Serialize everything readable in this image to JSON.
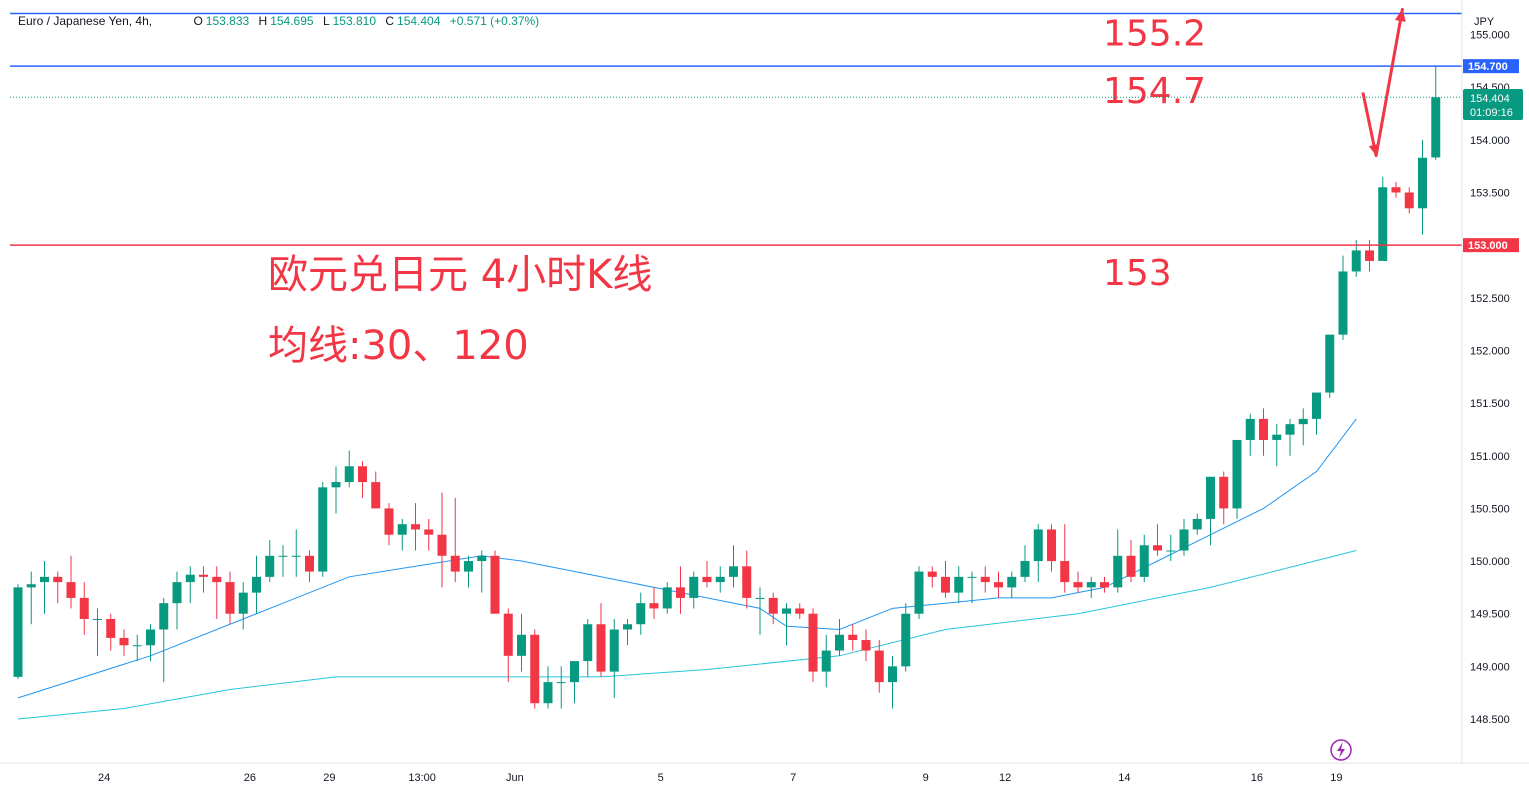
{
  "header": {
    "symbol": "Euro / Japanese Yen, 4h,",
    "ohlc": [
      {
        "k": "O",
        "v": "153.833"
      },
      {
        "k": "H",
        "v": "154.695"
      },
      {
        "k": "L",
        "v": "153.810"
      },
      {
        "k": "C",
        "v": "154.404"
      }
    ],
    "change": "+0.571 (+0.37%)"
  },
  "currency": "JPY",
  "price_label": {
    "value": "154.404",
    "countdown": "01:09:16"
  },
  "colors": {
    "up": "#089981",
    "down": "#f23645",
    "ma30": "#2196f3",
    "ma120": "#26c6da",
    "level_blue": "#2962ff",
    "level_red": "#f23645",
    "annot": "#f23645"
  },
  "chart_data": {
    "type": "candlestick",
    "title": "欧元兑日元 4小时K线",
    "subtitle": "均线:30、120",
    "y_ticks": [
      148.5,
      149.0,
      149.5,
      150.0,
      150.5,
      151.0,
      151.5,
      152.0,
      152.5,
      153.0,
      153.5,
      154.0,
      154.5,
      155.0
    ],
    "ylim": [
      148.25,
      155.25
    ],
    "x_labels": [
      {
        "label": "24",
        "bar": 6.5
      },
      {
        "label": "26",
        "bar": 17.5
      },
      {
        "label": "29",
        "bar": 23.5
      },
      {
        "label": "13:00",
        "bar": 30.5
      },
      {
        "label": "Jun",
        "bar": 37.5
      },
      {
        "label": "5",
        "bar": 48.5
      },
      {
        "label": "7",
        "bar": 58.5
      },
      {
        "label": "9",
        "bar": 68.5
      },
      {
        "label": "12",
        "bar": 74.5
      },
      {
        "label": "14",
        "bar": 83.5
      },
      {
        "label": "16",
        "bar": 93.5
      },
      {
        "label": "19",
        "bar": 99.5
      }
    ],
    "bars_shown": 101,
    "candles": [
      [
        148.9,
        149.78,
        148.88,
        149.75
      ],
      [
        149.75,
        149.9,
        149.4,
        149.78
      ],
      [
        149.8,
        150.0,
        149.5,
        149.85
      ],
      [
        149.85,
        149.9,
        149.6,
        149.8
      ],
      [
        149.8,
        150.05,
        149.55,
        149.65
      ],
      [
        149.65,
        149.8,
        149.3,
        149.45
      ],
      [
        149.45,
        149.55,
        149.1,
        149.45
      ],
      [
        149.45,
        149.5,
        149.15,
        149.27
      ],
      [
        149.27,
        149.35,
        149.1,
        149.2
      ],
      [
        149.2,
        149.3,
        149.05,
        149.2
      ],
      [
        149.2,
        149.4,
        149.05,
        149.35
      ],
      [
        149.35,
        149.65,
        148.85,
        149.6
      ],
      [
        149.6,
        149.9,
        149.35,
        149.8
      ],
      [
        149.8,
        149.95,
        149.6,
        149.87
      ],
      [
        149.87,
        149.95,
        149.7,
        149.85
      ],
      [
        149.85,
        149.95,
        149.45,
        149.8
      ],
      [
        149.8,
        149.9,
        149.4,
        149.5
      ],
      [
        149.5,
        149.8,
        149.35,
        149.7
      ],
      [
        149.7,
        150.05,
        149.5,
        149.85
      ],
      [
        149.85,
        150.2,
        149.8,
        150.05
      ],
      [
        150.05,
        150.15,
        149.85,
        150.05
      ],
      [
        150.05,
        150.3,
        149.85,
        150.05
      ],
      [
        150.05,
        150.1,
        149.8,
        149.9
      ],
      [
        149.9,
        150.75,
        149.85,
        150.7
      ],
      [
        150.7,
        150.9,
        150.45,
        150.75
      ],
      [
        150.75,
        151.05,
        150.7,
        150.9
      ],
      [
        150.9,
        150.95,
        150.6,
        150.75
      ],
      [
        150.75,
        150.85,
        150.5,
        150.5
      ],
      [
        150.5,
        150.55,
        150.15,
        150.25
      ],
      [
        150.25,
        150.4,
        150.1,
        150.35
      ],
      [
        150.35,
        150.55,
        150.1,
        150.3
      ],
      [
        150.3,
        150.4,
        150.1,
        150.25
      ],
      [
        150.25,
        150.65,
        149.75,
        150.05
      ],
      [
        150.05,
        150.6,
        149.8,
        149.9
      ],
      [
        149.9,
        150.05,
        149.75,
        150.0
      ],
      [
        150.0,
        150.1,
        149.7,
        150.05
      ],
      [
        150.05,
        150.1,
        149.5,
        149.5
      ],
      [
        149.5,
        149.55,
        148.85,
        149.1
      ],
      [
        149.1,
        149.5,
        148.95,
        149.3
      ],
      [
        149.3,
        149.35,
        148.6,
        148.65
      ],
      [
        148.65,
        149.0,
        148.6,
        148.85
      ],
      [
        148.85,
        149.0,
        148.6,
        148.85
      ],
      [
        148.85,
        149.05,
        148.65,
        149.05
      ],
      [
        149.05,
        149.45,
        148.9,
        149.4
      ],
      [
        149.4,
        149.6,
        148.9,
        148.95
      ],
      [
        148.95,
        149.45,
        148.7,
        149.35
      ],
      [
        149.35,
        149.45,
        149.2,
        149.4
      ],
      [
        149.4,
        149.7,
        149.3,
        149.6
      ],
      [
        149.6,
        149.75,
        149.45,
        149.55
      ],
      [
        149.55,
        149.8,
        149.5,
        149.75
      ],
      [
        149.75,
        149.95,
        149.5,
        149.65
      ],
      [
        149.65,
        149.9,
        149.55,
        149.85
      ],
      [
        149.85,
        150.0,
        149.75,
        149.8
      ],
      [
        149.8,
        149.95,
        149.7,
        149.85
      ],
      [
        149.85,
        150.15,
        149.75,
        149.95
      ],
      [
        149.95,
        150.1,
        149.55,
        149.65
      ],
      [
        149.65,
        149.75,
        149.3,
        149.65
      ],
      [
        149.65,
        149.7,
        149.4,
        149.5
      ],
      [
        149.5,
        149.6,
        149.2,
        149.55
      ],
      [
        149.55,
        149.6,
        149.45,
        149.5
      ],
      [
        149.5,
        149.55,
        148.85,
        148.95
      ],
      [
        148.95,
        149.3,
        148.8,
        149.15
      ],
      [
        149.15,
        149.45,
        149.1,
        149.3
      ],
      [
        149.3,
        149.4,
        149.15,
        149.25
      ],
      [
        149.25,
        149.35,
        149.05,
        149.15
      ],
      [
        149.15,
        149.25,
        148.75,
        148.85
      ],
      [
        148.85,
        149.1,
        148.6,
        149.0
      ],
      [
        149.0,
        149.6,
        148.95,
        149.5
      ],
      [
        149.5,
        149.95,
        149.45,
        149.9
      ],
      [
        149.9,
        149.95,
        149.75,
        149.85
      ],
      [
        149.85,
        150.0,
        149.65,
        149.7
      ],
      [
        149.7,
        149.95,
        149.6,
        149.85
      ],
      [
        149.85,
        149.9,
        149.6,
        149.85
      ],
      [
        149.85,
        149.95,
        149.7,
        149.8
      ],
      [
        149.8,
        149.9,
        149.65,
        149.75
      ],
      [
        149.75,
        149.9,
        149.65,
        149.85
      ],
      [
        149.85,
        150.15,
        149.8,
        150.0
      ],
      [
        150.0,
        150.35,
        149.8,
        150.3
      ],
      [
        150.3,
        150.35,
        149.9,
        150.0
      ],
      [
        150.0,
        150.35,
        149.7,
        149.8
      ],
      [
        149.8,
        149.9,
        149.7,
        149.75
      ],
      [
        149.75,
        149.85,
        149.65,
        149.8
      ],
      [
        149.8,
        149.85,
        149.7,
        149.75
      ],
      [
        149.75,
        150.3,
        149.7,
        150.05
      ],
      [
        150.05,
        150.2,
        149.8,
        149.85
      ],
      [
        149.85,
        150.25,
        149.8,
        150.15
      ],
      [
        150.15,
        150.35,
        150.05,
        150.1
      ],
      [
        150.1,
        150.25,
        150.0,
        150.1
      ],
      [
        150.1,
        150.4,
        150.05,
        150.3
      ],
      [
        150.3,
        150.45,
        150.25,
        150.4
      ],
      [
        150.4,
        150.8,
        150.15,
        150.8
      ],
      [
        150.8,
        150.85,
        150.35,
        150.5
      ],
      [
        150.5,
        151.15,
        150.4,
        151.15
      ],
      [
        151.15,
        151.4,
        151.0,
        151.35
      ],
      [
        151.35,
        151.45,
        151.0,
        151.15
      ],
      [
        151.15,
        151.3,
        150.9,
        151.2
      ],
      [
        151.2,
        151.35,
        151.0,
        151.3
      ],
      [
        151.3,
        151.45,
        151.1,
        151.35
      ],
      [
        151.35,
        151.6,
        151.2,
        151.6
      ],
      [
        151.6,
        152.15,
        151.55,
        152.15
      ],
      [
        152.15,
        152.9,
        152.1,
        152.75
      ],
      [
        152.75,
        153.05,
        152.7,
        152.95
      ],
      [
        152.95,
        153.05,
        152.75,
        152.85
      ],
      [
        152.85,
        153.65,
        152.85,
        153.55
      ],
      [
        153.55,
        153.6,
        153.45,
        153.5
      ],
      [
        153.5,
        153.55,
        153.3,
        153.35
      ],
      [
        153.35,
        154.0,
        153.1,
        153.83
      ],
      [
        153.833,
        154.695,
        153.81,
        154.404
      ]
    ],
    "ma30": [
      [
        0,
        148.7
      ],
      [
        10,
        149.1
      ],
      [
        20,
        149.6
      ],
      [
        25,
        149.85
      ],
      [
        30,
        149.95
      ],
      [
        35,
        150.05
      ],
      [
        38,
        150.0
      ],
      [
        44,
        149.85
      ],
      [
        50,
        149.7
      ],
      [
        56,
        149.55
      ],
      [
        58,
        149.38
      ],
      [
        62,
        149.35
      ],
      [
        66,
        149.55
      ],
      [
        70,
        149.6
      ],
      [
        74,
        149.65
      ],
      [
        78,
        149.65
      ],
      [
        82,
        149.75
      ],
      [
        86,
        150.0
      ],
      [
        90,
        150.25
      ],
      [
        94,
        150.5
      ],
      [
        98,
        150.85
      ],
      [
        101,
        151.35
      ]
    ],
    "ma120": [
      [
        0,
        148.5
      ],
      [
        8,
        148.6
      ],
      [
        16,
        148.78
      ],
      [
        24,
        148.9
      ],
      [
        34,
        148.9
      ],
      [
        44,
        148.9
      ],
      [
        52,
        148.97
      ],
      [
        62,
        149.1
      ],
      [
        70,
        149.35
      ],
      [
        80,
        149.5
      ],
      [
        90,
        149.75
      ],
      [
        101,
        150.1
      ]
    ],
    "levels": [
      {
        "value": 155.2,
        "color": "#2962ff",
        "annotation": "155.2"
      },
      {
        "value": 154.7,
        "color": "#2962ff",
        "annotation": "154.7",
        "axis_label": "154.700"
      },
      {
        "value": 153.0,
        "color": "#f23645",
        "annotation": "153",
        "axis_label": "153.000"
      }
    ],
    "forecast_path": [
      [
        101.5,
        154.45
      ],
      [
        102.5,
        153.85
      ],
      [
        104.5,
        155.25
      ]
    ]
  }
}
